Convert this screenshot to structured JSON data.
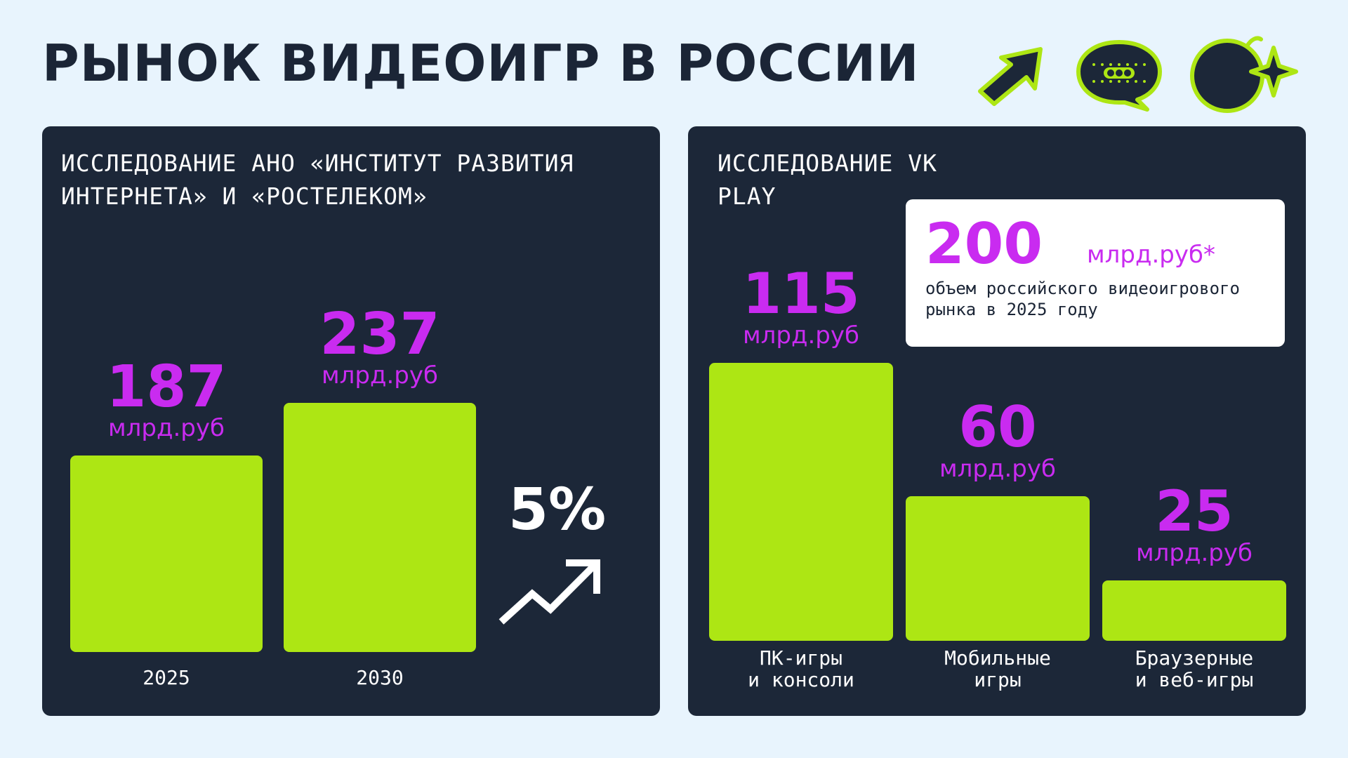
{
  "title": "РЫНОК ВИДЕОИГР В РОССИИ",
  "icons": [
    "arrow-up-right-icon",
    "chat-bubble-icon",
    "bomb-sparkle-icon"
  ],
  "colors": {
    "background": "#E8F4FD",
    "panel": "#1C2738",
    "bar": "#ADE614",
    "accent": "#C92BF0",
    "text_dark": "#1B2536",
    "text_light": "#FFFFFF"
  },
  "left_panel": {
    "heading_line1": "ИССЛЕДОВАНИЕ АНО «ИНСТИТУТ РАЗВИТИЯ",
    "heading_line2": "ИНТЕРНЕТА» И «РОСТЕЛЕКОМ»",
    "growth_label": "5%"
  },
  "right_panel": {
    "heading": "ИССЛЕДОВАНИЕ VK PLAY",
    "total": {
      "value": "200",
      "unit": "млрд.руб*",
      "desc_line1": "объем российского видеоигрового",
      "desc_line2": "рынка в 2025 году"
    }
  },
  "chart_data": [
    {
      "type": "bar",
      "categories": [
        "2025",
        "2030"
      ],
      "values": [
        187,
        237
      ],
      "value_labels": [
        "187",
        "237"
      ],
      "unit": "млрд.руб",
      "annotation": "5%",
      "title": "ИССЛЕДОВАНИЕ АНО «ИНСТИТУТ РАЗВИТИЯ ИНТЕРНЕТА» И «РОСТЕЛЕКОМ»"
    },
    {
      "type": "bar",
      "categories": [
        "ПК-игры\nи консоли",
        "Мобильные\nигры",
        "Браузерные\nи веб-игры"
      ],
      "values": [
        115,
        60,
        25
      ],
      "value_labels": [
        "115",
        "60",
        "25"
      ],
      "unit": "млрд.руб",
      "title": "ИССЛЕДОВАНИЕ VK PLAY"
    }
  ]
}
